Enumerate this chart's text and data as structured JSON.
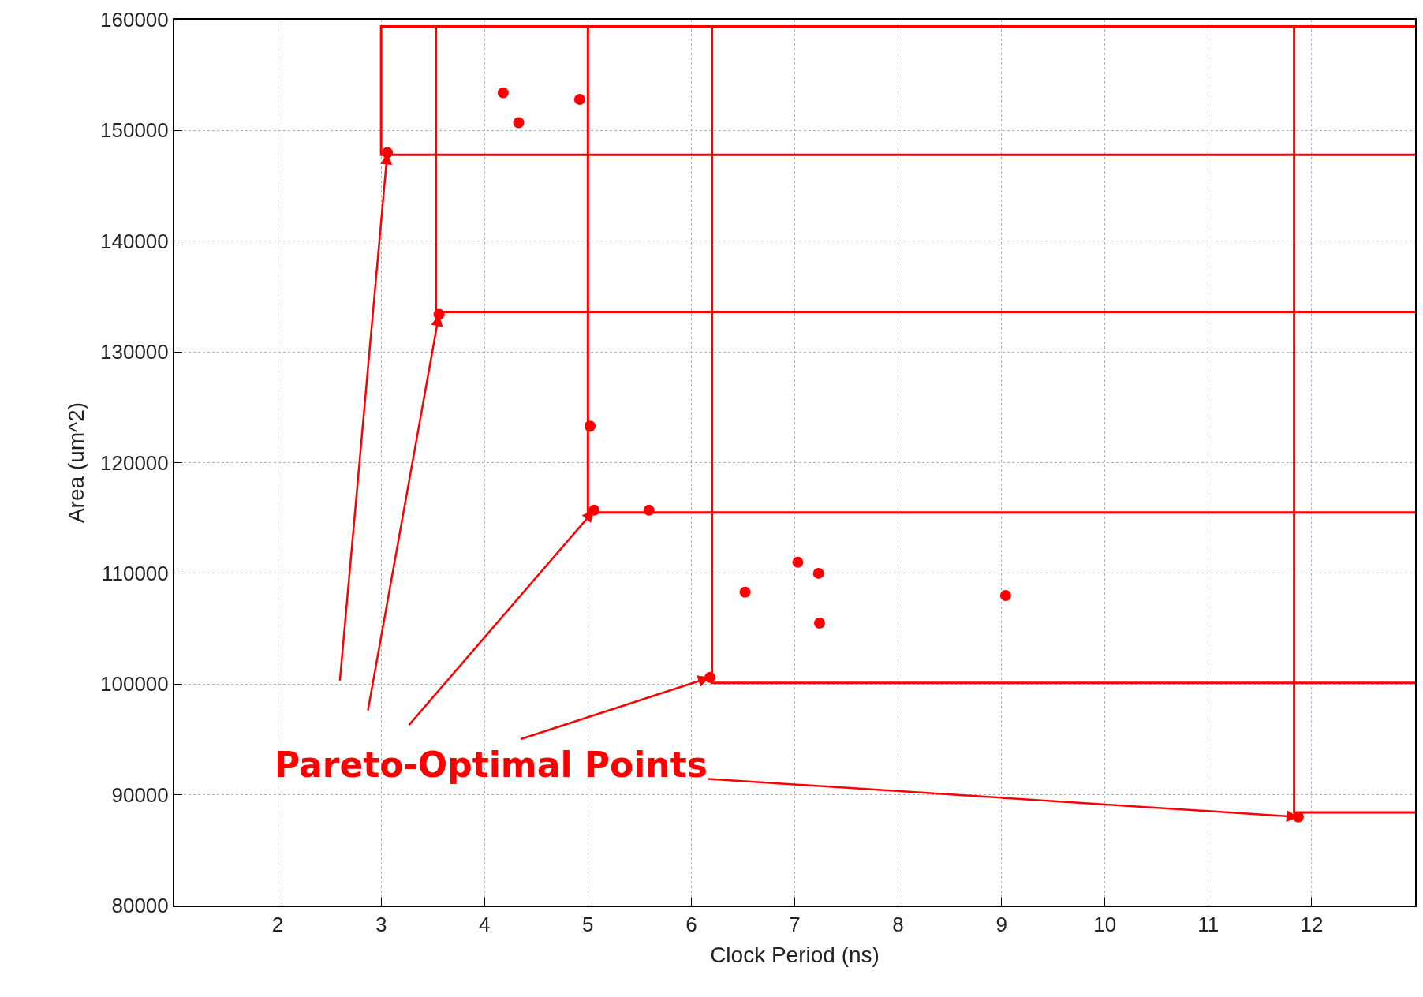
{
  "chart_data": {
    "type": "scatter",
    "xlabel": "Clock Period (ns)",
    "ylabel": "Area (um^2)",
    "xlim": [
      1,
      13
    ],
    "xticks": [
      2,
      3,
      4,
      5,
      6,
      7,
      8,
      9,
      10,
      11,
      12
    ],
    "ylim": [
      80000,
      160000
    ],
    "yticks": [
      80000,
      90000,
      100000,
      110000,
      120000,
      130000,
      140000,
      150000,
      160000
    ],
    "grid": true,
    "annotations": [
      {
        "text": "Pareto-Optimal Points",
        "x": 11.87,
        "y": 88000
      }
    ],
    "series": [
      {
        "marker": "circle",
        "color": "#ff0000",
        "x": [
          4.18,
          4.33,
          4.92,
          5.02,
          5.59,
          6.52,
          7.03,
          7.23,
          7.24,
          9.04
        ],
        "values": [
          153400,
          150700,
          152800,
          123300,
          115700,
          108300,
          111000,
          110000,
          105500,
          108000
        ]
      },
      {
        "marker": "circle",
        "color": "#ff0000",
        "x": [
          3.06,
          3.56,
          5.06,
          6.18,
          11.87
        ],
        "values": [
          148000,
          133400,
          115700,
          100600,
          88000
        ]
      },
      {
        "type": "line",
        "color": "#ff0000",
        "line_style": "solid",
        "marker": "none",
        "x": [
          13,
          3.0,
          3.0,
          13
        ],
        "values": [
          159400,
          159400,
          147800,
          147800
        ]
      },
      {
        "type": "line",
        "color": "#ff0000",
        "line_style": "solid",
        "marker": "none",
        "x": [
          13,
          3.53,
          3.53,
          13
        ],
        "values": [
          159400,
          159400,
          133600,
          133600
        ]
      },
      {
        "type": "line",
        "color": "#ff0000",
        "line_style": "solid",
        "marker": "none",
        "x": [
          13,
          5.0,
          5.0,
          13
        ],
        "values": [
          159400,
          159400,
          115500,
          115500
        ]
      },
      {
        "type": "line",
        "color": "#ff0000",
        "line_style": "solid",
        "marker": "none",
        "x": [
          13,
          6.2,
          6.2,
          13
        ],
        "values": [
          159400,
          159400,
          100100,
          100100
        ]
      },
      {
        "type": "line",
        "color": "#ff0000",
        "line_style": "solid",
        "marker": "none",
        "x": [
          13,
          11.83,
          11.83,
          13
        ],
        "values": [
          159400,
          159400,
          88400,
          88400
        ]
      }
    ]
  }
}
